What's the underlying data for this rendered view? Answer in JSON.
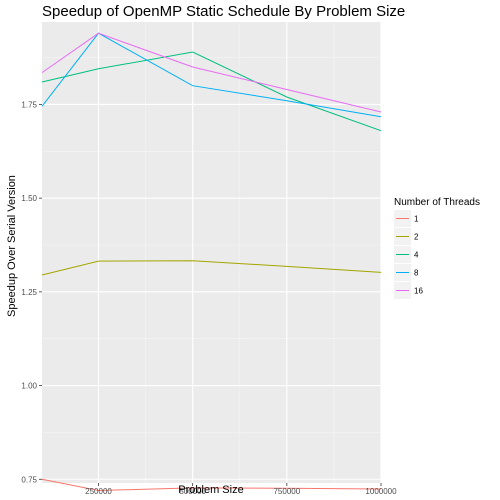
{
  "chart_data": {
    "type": "line",
    "title": "Speedup of OpenMP Static Schedule By Problem Size",
    "xlabel": "Problem Size",
    "ylabel": "Speedup Over Serial Version",
    "xlim": [
      100000,
      1000000
    ],
    "ylim": [
      0.74,
      1.97
    ],
    "x_ticks": [
      250000,
      500000,
      750000,
      1000000
    ],
    "x_tick_labels": [
      "250000",
      "500000",
      "750000",
      "1000000"
    ],
    "y_ticks": [
      0.75,
      1.0,
      1.25,
      1.5,
      1.75
    ],
    "y_tick_labels": [
      "0.75",
      "1.00",
      "1.25",
      "1.50",
      "1.75"
    ],
    "grid": true,
    "legend": {
      "title": "Number of Threads",
      "position": "right"
    },
    "series": [
      {
        "name": "1",
        "color": "#F8766D",
        "x": [
          100000,
          250000,
          500000,
          750000,
          1000000
        ],
        "y": [
          0.75,
          0.72,
          0.727,
          0.726,
          0.724
        ]
      },
      {
        "name": "2",
        "color": "#A3A500",
        "x": [
          100000,
          250000,
          500000,
          750000,
          1000000
        ],
        "y": [
          1.295,
          1.332,
          1.333,
          1.318,
          1.302
        ]
      },
      {
        "name": "4",
        "color": "#00BF7D",
        "x": [
          100000,
          250000,
          500000,
          750000,
          1000000
        ],
        "y": [
          1.81,
          1.845,
          1.89,
          1.77,
          1.68
        ]
      },
      {
        "name": "8",
        "color": "#00B0F6",
        "x": [
          100000,
          250000,
          500000,
          750000,
          1000000
        ],
        "y": [
          1.745,
          1.94,
          1.8,
          1.76,
          1.717
        ]
      },
      {
        "name": "16",
        "color": "#E76BF3",
        "x": [
          100000,
          250000,
          500000,
          750000,
          1000000
        ],
        "y": [
          1.835,
          1.94,
          1.85,
          1.79,
          1.73
        ]
      }
    ]
  }
}
